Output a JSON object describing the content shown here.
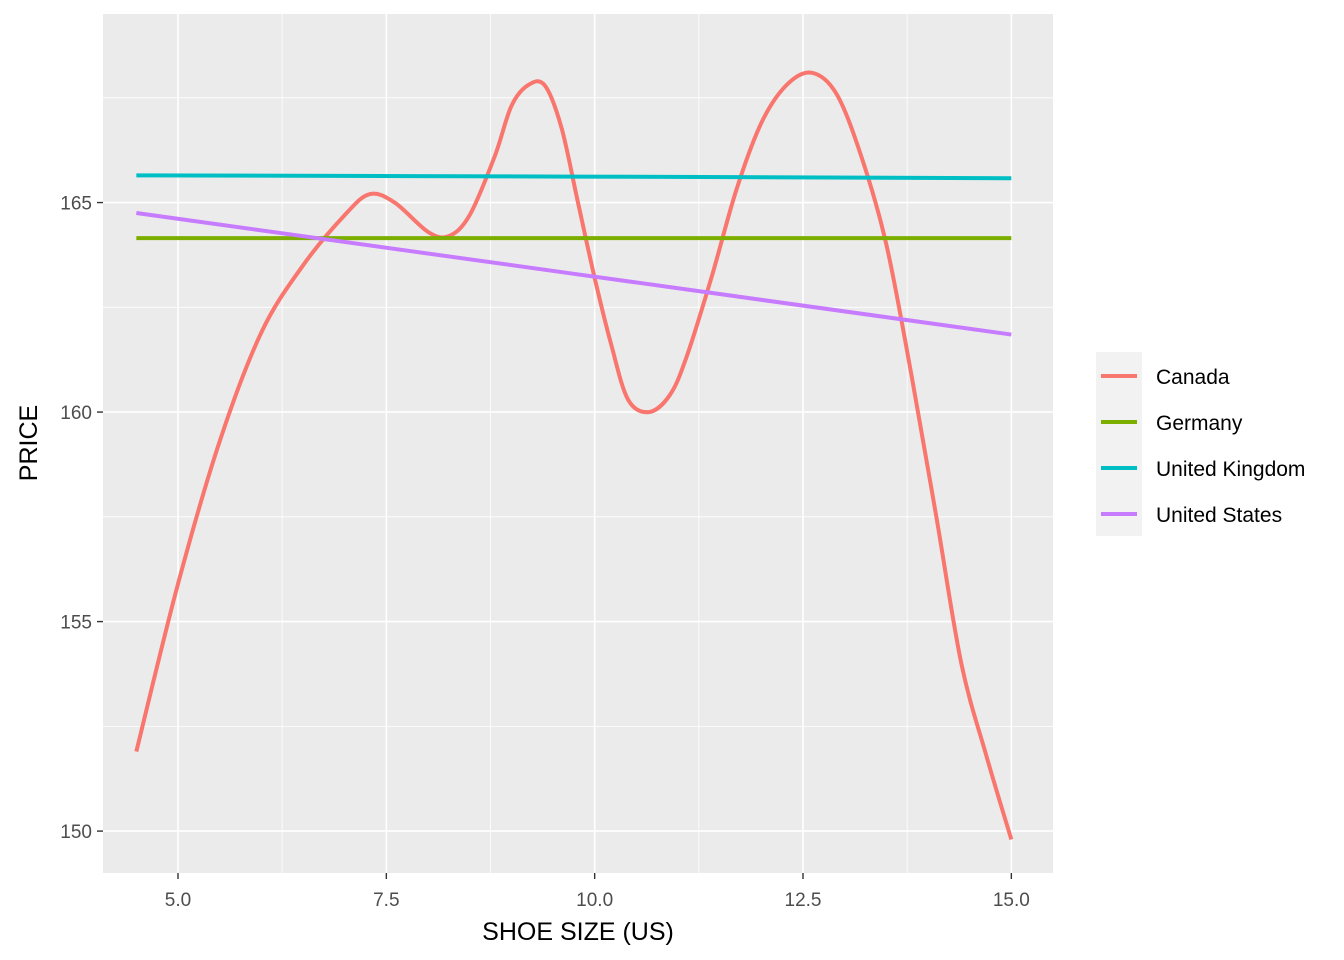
{
  "chart_data": {
    "type": "line",
    "title": "",
    "xlabel": "SHOE SIZE (US)",
    "ylabel": "PRICE",
    "xlim": [
      4.1,
      15.5
    ],
    "ylim": [
      149,
      169.5
    ],
    "x_ticks": [
      {
        "value": 5.0,
        "label": "5.0"
      },
      {
        "value": 7.5,
        "label": "7.5"
      },
      {
        "value": 10.0,
        "label": "10.0"
      },
      {
        "value": 12.5,
        "label": "12.5"
      },
      {
        "value": 15.0,
        "label": "15.0"
      }
    ],
    "y_ticks": [
      {
        "value": 150,
        "label": "150"
      },
      {
        "value": 155,
        "label": "155"
      },
      {
        "value": 160,
        "label": "160"
      },
      {
        "value": 165,
        "label": "165"
      }
    ],
    "x_minor": [
      6.25,
      8.75,
      11.25,
      13.75
    ],
    "y_minor": [
      152.5,
      157.5,
      162.5,
      167.5
    ],
    "grid": true,
    "legend_position": "right",
    "series": [
      {
        "name": "Canada",
        "color": "#F8766D",
        "x": [
          4.5,
          5.0,
          5.5,
          6.0,
          6.5,
          7.0,
          7.3,
          7.6,
          8.0,
          8.25,
          8.5,
          8.8,
          9.0,
          9.2,
          9.4,
          9.6,
          9.8,
          10.0,
          10.2,
          10.4,
          10.65,
          10.9,
          11.1,
          11.4,
          11.7,
          12.0,
          12.3,
          12.6,
          12.9,
          13.2,
          13.5,
          13.8,
          14.1,
          14.4,
          14.7,
          15.0
        ],
        "y": [
          151.9,
          155.9,
          159.3,
          161.9,
          163.5,
          164.7,
          165.2,
          165.0,
          164.3,
          164.2,
          164.7,
          166.1,
          167.3,
          167.8,
          167.8,
          166.8,
          165.0,
          163.2,
          161.6,
          160.3,
          160.0,
          160.4,
          161.3,
          163.2,
          165.3,
          166.9,
          167.8,
          168.1,
          167.6,
          166.1,
          164.0,
          160.9,
          157.5,
          154.0,
          151.8,
          149.8
        ]
      },
      {
        "name": "Germany",
        "color": "#7CAE00",
        "x": [
          4.5,
          15.0
        ],
        "y": [
          164.15,
          164.15
        ]
      },
      {
        "name": "United Kingdom",
        "color": "#00BFC4",
        "x": [
          4.5,
          9.75,
          15.0
        ],
        "y": [
          165.65,
          165.62,
          165.58
        ]
      },
      {
        "name": "United States",
        "color": "#C77CFF",
        "x": [
          4.5,
          15.0
        ],
        "y": [
          164.75,
          161.85
        ]
      }
    ]
  }
}
